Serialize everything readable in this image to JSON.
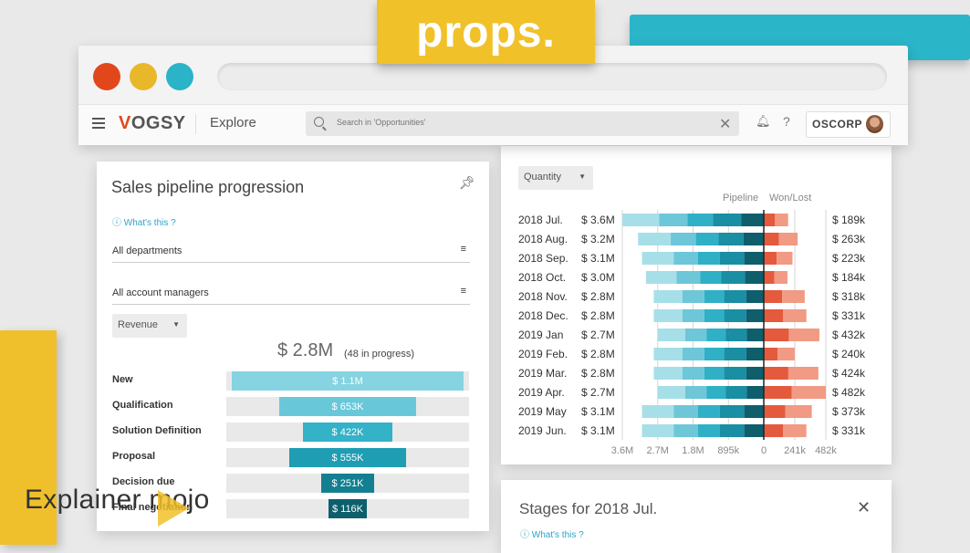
{
  "logo": "props.",
  "watermark": "Explainer mojo",
  "app": {
    "brand_v": "V",
    "brand_rest": "OGSY",
    "section": "Explore",
    "search_placeholder": "Search in 'Opportunities'",
    "org": "OSCORP",
    "icons": [
      "menu-icon",
      "search-icon",
      "clear-icon",
      "bell-icon",
      "help-icon"
    ]
  },
  "pipeline_card": {
    "title": "Sales pipeline progression",
    "whats_this": "What's this ?",
    "department_filter": "All departments",
    "manager_filter": "All account managers",
    "metric": "Revenue",
    "total": "$ 2.8M",
    "total_sub": "(48 in progress)",
    "stages": [
      {
        "label": "New",
        "value": "$ 1.1M",
        "amount": 1100,
        "color": "#86d3e1"
      },
      {
        "label": "Qualification",
        "value": "$ 653K",
        "amount": 653,
        "color": "#68c8da"
      },
      {
        "label": "Solution Definition",
        "value": "$ 422K",
        "amount": 422,
        "color": "#33b2c8"
      },
      {
        "label": "Proposal",
        "value": "$ 555K",
        "amount": 555,
        "color": "#1e9db3"
      },
      {
        "label": "Decision due",
        "value": "$ 251K",
        "amount": 251,
        "color": "#137f91"
      },
      {
        "label": "Final negotiation",
        "value": "$ 116K",
        "amount": 116,
        "color": "#0e5f6c"
      }
    ]
  },
  "trend_card": {
    "metric": "Quantity",
    "header_pipeline": "Pipeline",
    "header_won": "Won/Lost",
    "axis_ticks": [
      "3.6M",
      "2.7M",
      "1.8M",
      "895k",
      "0",
      "241k",
      "482k"
    ],
    "colors": {
      "pipeline": [
        "#a7dfe8",
        "#6dc7d8",
        "#2fb0c6",
        "#1a8ea3",
        "#0e5e6c"
      ],
      "won": "#e45a3c",
      "lost": "#f19a84"
    }
  },
  "chart_data": {
    "type": "bar",
    "title": "",
    "xlabel": "",
    "ylabel": "",
    "categories": [
      "2018 Jul.",
      "2018 Aug.",
      "2018 Sep.",
      "2018 Oct.",
      "2018 Nov.",
      "2018 Dec.",
      "2019 Jan",
      "2019 Feb.",
      "2019 Mar.",
      "2019 Apr.",
      "2019 May",
      "2019 Jun."
    ],
    "series": [
      {
        "name": "Pipeline",
        "labels": [
          "$ 3.6M",
          "$ 3.2M",
          "$ 3.1M",
          "$ 3.0M",
          "$ 2.8M",
          "$ 2.8M",
          "$ 2.7M",
          "$ 2.8M",
          "$ 2.8M",
          "$ 2.7M",
          "$ 3.1M",
          "$ 3.1M"
        ],
        "values": [
          3.6,
          3.2,
          3.1,
          3.0,
          2.8,
          2.8,
          2.7,
          2.8,
          2.8,
          2.7,
          3.1,
          3.1
        ]
      },
      {
        "name": "Won/Lost",
        "labels": [
          "$ 189k",
          "$ 263k",
          "$ 223k",
          "$ 184k",
          "$ 318k",
          "$ 331k",
          "$ 432k",
          "$ 240k",
          "$ 424k",
          "$ 482k",
          "$ 373k",
          "$ 331k"
        ],
        "values": [
          189,
          263,
          223,
          184,
          318,
          331,
          432,
          240,
          424,
          482,
          373,
          331
        ]
      }
    ],
    "xlim_pipeline": [
      3.6,
      0
    ],
    "xlim_won": [
      0,
      482
    ]
  },
  "stages_card": {
    "title": "Stages for 2018 Jul.",
    "whats_this": "What's this ?"
  }
}
